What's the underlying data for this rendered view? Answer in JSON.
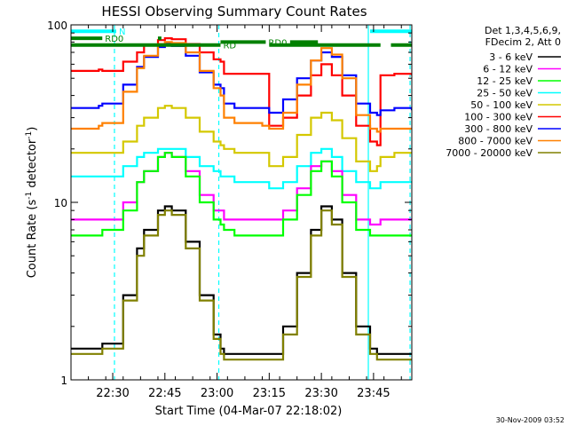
{
  "chart_data": {
    "type": "line",
    "title": "HESSI Observing Summary Count Rates",
    "xlabel": "Start Time (04-Mar-07 22:18:02)",
    "ylabel_prefix": "Count Rate (s",
    "ylabel_sup1": "-1",
    "ylabel_mid": " detector",
    "ylabel_sup2": "-1",
    "ylabel_suffix": ")",
    "y_scale": "log",
    "ylim": [
      1,
      100
    ],
    "xlim_minutes": [
      0,
      98
    ],
    "y_tick_labels": [
      "100",
      "10",
      "1"
    ],
    "y_tick_values": [
      100,
      10,
      1
    ],
    "x_ticks": [
      {
        "label": "22:30",
        "minute": 12
      },
      {
        "label": "22:45",
        "minute": 27
      },
      {
        "label": "23:00",
        "minute": 42
      },
      {
        "label": "23:15",
        "minute": 57
      },
      {
        "label": "23:30",
        "minute": 72
      },
      {
        "label": "23:45",
        "minute": 87
      }
    ],
    "legend": {
      "placement": "right",
      "header": [
        "Det 1,3,4,5,6,9,",
        "FDecim 2, Att 0"
      ],
      "entries": [
        {
          "name": "3 - 6 keV",
          "color": "#000000"
        },
        {
          "name": "6 - 12 keV",
          "color": "#ff00ff"
        },
        {
          "name": "12 - 25 keV",
          "color": "#00ff00"
        },
        {
          "name": "25 - 50 keV",
          "color": "#00ffff"
        },
        {
          "name": "50 - 100 keV",
          "color": "#d4c800"
        },
        {
          "name": "100 - 300 keV",
          "color": "#ff0000"
        },
        {
          "name": "300 - 800 keV",
          "color": "#0000ff"
        },
        {
          "name": "800 - 7000 keV",
          "color": "#ff8000"
        },
        {
          "name": "7000 - 20000 keV",
          "color": "#808000"
        }
      ]
    },
    "series": [
      {
        "color": "#ff0000",
        "points": [
          [
            0,
            55
          ],
          [
            8,
            56
          ],
          [
            9,
            55
          ],
          [
            15,
            62
          ],
          [
            19,
            70
          ],
          [
            21,
            77
          ],
          [
            25,
            82
          ],
          [
            27,
            84
          ],
          [
            29,
            83
          ],
          [
            33,
            78
          ],
          [
            37,
            70
          ],
          [
            41,
            64
          ],
          [
            43,
            62
          ],
          [
            44,
            53
          ],
          [
            47,
            53
          ],
          [
            55,
            53
          ],
          [
            56,
            53
          ],
          [
            57,
            27
          ],
          [
            61,
            30
          ],
          [
            65,
            40
          ],
          [
            69,
            52
          ],
          [
            72,
            60
          ],
          [
            75,
            52
          ],
          [
            78,
            40
          ],
          [
            82,
            27
          ],
          [
            86,
            22
          ],
          [
            88,
            21
          ],
          [
            89,
            52
          ],
          [
            93,
            53
          ],
          [
            98,
            52
          ]
        ]
      },
      {
        "color": "#0000ff",
        "points": [
          [
            0,
            34
          ],
          [
            8,
            35
          ],
          [
            9,
            36
          ],
          [
            15,
            46
          ],
          [
            19,
            58
          ],
          [
            21,
            66
          ],
          [
            25,
            75
          ],
          [
            27,
            78
          ],
          [
            29,
            76
          ],
          [
            33,
            67
          ],
          [
            37,
            54
          ],
          [
            41,
            46
          ],
          [
            43,
            44
          ],
          [
            44,
            36
          ],
          [
            47,
            34
          ],
          [
            55,
            34
          ],
          [
            56,
            34
          ],
          [
            57,
            32
          ],
          [
            61,
            38
          ],
          [
            65,
            50
          ],
          [
            69,
            63
          ],
          [
            72,
            70
          ],
          [
            75,
            66
          ],
          [
            78,
            52
          ],
          [
            82,
            36
          ],
          [
            86,
            32
          ],
          [
            88,
            31
          ],
          [
            89,
            33
          ],
          [
            93,
            34
          ],
          [
            98,
            33
          ]
        ]
      },
      {
        "color": "#ff8000",
        "points": [
          [
            0,
            26
          ],
          [
            8,
            27
          ],
          [
            9,
            28
          ],
          [
            15,
            42
          ],
          [
            19,
            57
          ],
          [
            21,
            67
          ],
          [
            25,
            78
          ],
          [
            27,
            80
          ],
          [
            29,
            79
          ],
          [
            33,
            70
          ],
          [
            37,
            55
          ],
          [
            41,
            44
          ],
          [
            43,
            40
          ],
          [
            44,
            30
          ],
          [
            47,
            28
          ],
          [
            55,
            27
          ],
          [
            56,
            27
          ],
          [
            57,
            26
          ],
          [
            61,
            32
          ],
          [
            65,
            46
          ],
          [
            69,
            63
          ],
          [
            72,
            74
          ],
          [
            75,
            68
          ],
          [
            78,
            50
          ],
          [
            82,
            31
          ],
          [
            86,
            26
          ],
          [
            88,
            25
          ],
          [
            89,
            26
          ],
          [
            93,
            26
          ],
          [
            98,
            26
          ]
        ]
      },
      {
        "color": "#d4c800",
        "points": [
          [
            0,
            19
          ],
          [
            8,
            19
          ],
          [
            9,
            19
          ],
          [
            15,
            22
          ],
          [
            19,
            27
          ],
          [
            21,
            30
          ],
          [
            25,
            34
          ],
          [
            27,
            35
          ],
          [
            29,
            34
          ],
          [
            33,
            30
          ],
          [
            37,
            25
          ],
          [
            41,
            22
          ],
          [
            43,
            21
          ],
          [
            44,
            20
          ],
          [
            47,
            19
          ],
          [
            55,
            19
          ],
          [
            56,
            19
          ],
          [
            57,
            16
          ],
          [
            61,
            18
          ],
          [
            65,
            24
          ],
          [
            69,
            30
          ],
          [
            72,
            32
          ],
          [
            75,
            29
          ],
          [
            78,
            23
          ],
          [
            82,
            17
          ],
          [
            86,
            15
          ],
          [
            88,
            16
          ],
          [
            89,
            18
          ],
          [
            93,
            19
          ],
          [
            98,
            19
          ]
        ]
      },
      {
        "color": "#00ffff",
        "points": [
          [
            0,
            14
          ],
          [
            8,
            14
          ],
          [
            9,
            14
          ],
          [
            15,
            16
          ],
          [
            19,
            18
          ],
          [
            21,
            19
          ],
          [
            25,
            20
          ],
          [
            27,
            20
          ],
          [
            29,
            20
          ],
          [
            33,
            18
          ],
          [
            37,
            16
          ],
          [
            41,
            15
          ],
          [
            43,
            14
          ],
          [
            44,
            14
          ],
          [
            47,
            13
          ],
          [
            55,
            13
          ],
          [
            56,
            13
          ],
          [
            57,
            12
          ],
          [
            61,
            13
          ],
          [
            65,
            16
          ],
          [
            69,
            19
          ],
          [
            72,
            20
          ],
          [
            75,
            18
          ],
          [
            78,
            15
          ],
          [
            82,
            13
          ],
          [
            86,
            12
          ],
          [
            88,
            12
          ],
          [
            89,
            13
          ],
          [
            93,
            13
          ],
          [
            98,
            13
          ]
        ]
      },
      {
        "color": "#ff00ff",
        "points": [
          [
            0,
            8
          ],
          [
            8,
            8
          ],
          [
            9,
            8
          ],
          [
            15,
            10
          ],
          [
            19,
            13
          ],
          [
            21,
            15
          ],
          [
            25,
            18
          ],
          [
            27,
            19
          ],
          [
            29,
            18
          ],
          [
            33,
            15
          ],
          [
            37,
            11
          ],
          [
            41,
            9
          ],
          [
            43,
            9
          ],
          [
            44,
            8
          ],
          [
            47,
            8
          ],
          [
            55,
            8
          ],
          [
            56,
            8
          ],
          [
            57,
            8
          ],
          [
            61,
            9
          ],
          [
            65,
            12
          ],
          [
            69,
            16
          ],
          [
            72,
            17
          ],
          [
            75,
            15
          ],
          [
            78,
            11
          ],
          [
            82,
            8
          ],
          [
            86,
            7.5
          ],
          [
            88,
            7.5
          ],
          [
            89,
            8
          ],
          [
            93,
            8
          ],
          [
            98,
            8
          ]
        ]
      },
      {
        "color": "#00ff00",
        "points": [
          [
            0,
            6.5
          ],
          [
            8,
            6.5
          ],
          [
            9,
            7
          ],
          [
            15,
            9
          ],
          [
            19,
            13
          ],
          [
            21,
            15
          ],
          [
            25,
            18
          ],
          [
            27,
            19
          ],
          [
            29,
            18
          ],
          [
            33,
            14
          ],
          [
            37,
            10
          ],
          [
            41,
            8
          ],
          [
            43,
            7.5
          ],
          [
            44,
            7
          ],
          [
            47,
            6.5
          ],
          [
            55,
            6.5
          ],
          [
            56,
            6.5
          ],
          [
            57,
            6.5
          ],
          [
            61,
            8
          ],
          [
            65,
            11
          ],
          [
            69,
            15
          ],
          [
            72,
            17
          ],
          [
            75,
            14
          ],
          [
            78,
            10
          ],
          [
            82,
            7
          ],
          [
            86,
            6.5
          ],
          [
            88,
            6.5
          ],
          [
            89,
            6.5
          ],
          [
            93,
            6.5
          ],
          [
            98,
            6.5
          ]
        ]
      },
      {
        "color": "#000000",
        "points": [
          [
            0,
            1.5
          ],
          [
            8,
            1.5
          ],
          [
            9,
            1.6
          ],
          [
            15,
            3
          ],
          [
            19,
            5.5
          ],
          [
            21,
            7
          ],
          [
            25,
            9
          ],
          [
            27,
            9.5
          ],
          [
            29,
            9
          ],
          [
            33,
            6
          ],
          [
            37,
            3
          ],
          [
            41,
            1.8
          ],
          [
            43,
            1.5
          ],
          [
            44,
            1.4
          ],
          [
            47,
            1.4
          ],
          [
            55,
            1.4
          ],
          [
            56,
            1.4
          ],
          [
            57,
            1.4
          ],
          [
            61,
            2
          ],
          [
            65,
            4
          ],
          [
            69,
            7
          ],
          [
            72,
            9.5
          ],
          [
            75,
            8
          ],
          [
            78,
            4
          ],
          [
            82,
            2
          ],
          [
            86,
            1.5
          ],
          [
            88,
            1.4
          ],
          [
            89,
            1.4
          ],
          [
            93,
            1.4
          ],
          [
            98,
            1.4
          ]
        ]
      },
      {
        "color": "#808000",
        "points": [
          [
            0,
            1.4
          ],
          [
            8,
            1.4
          ],
          [
            9,
            1.5
          ],
          [
            15,
            2.8
          ],
          [
            19,
            5
          ],
          [
            21,
            6.5
          ],
          [
            25,
            8.5
          ],
          [
            27,
            9
          ],
          [
            29,
            8.5
          ],
          [
            33,
            5.5
          ],
          [
            37,
            2.8
          ],
          [
            41,
            1.7
          ],
          [
            43,
            1.4
          ],
          [
            44,
            1.3
          ],
          [
            47,
            1.3
          ],
          [
            55,
            1.3
          ],
          [
            56,
            1.3
          ],
          [
            57,
            1.3
          ],
          [
            61,
            1.8
          ],
          [
            65,
            3.8
          ],
          [
            69,
            6.5
          ],
          [
            72,
            9
          ],
          [
            75,
            7.5
          ],
          [
            78,
            3.8
          ],
          [
            82,
            1.8
          ],
          [
            86,
            1.4
          ],
          [
            88,
            1.3
          ],
          [
            89,
            1.3
          ],
          [
            93,
            1.3
          ],
          [
            98,
            1.3
          ]
        ]
      }
    ],
    "flag_bars": [
      {
        "label": "N",
        "color": "#00ffff",
        "y": 92,
        "segments": [
          [
            0,
            13
          ],
          [
            86,
            98
          ]
        ]
      },
      {
        "label": "RD0",
        "color": "#008000",
        "y": 84,
        "segments": [
          [
            0,
            9
          ],
          [
            25,
            26
          ]
        ]
      },
      {
        "label": "RD0",
        "color": "#008000",
        "y": 80,
        "segments": [
          [
            43,
            56
          ],
          [
            63,
            71
          ]
        ]
      },
      {
        "label": "RD",
        "color": "#008000",
        "y": 77,
        "segments": [
          [
            0,
            43
          ],
          [
            57,
            89
          ],
          [
            92,
            98
          ]
        ]
      }
    ],
    "vlines": [
      {
        "minute": 12.5,
        "color": "#00ffff",
        "style": "dashed"
      },
      {
        "minute": 42.5,
        "color": "#00ffff",
        "style": "dashed"
      },
      {
        "minute": 85.5,
        "color": "#00ffff",
        "style": "solid"
      },
      {
        "minute": 97.5,
        "color": "#00ffff",
        "style": "dashed"
      }
    ],
    "footer_timestamp": "30-Nov-2009 03:52"
  }
}
